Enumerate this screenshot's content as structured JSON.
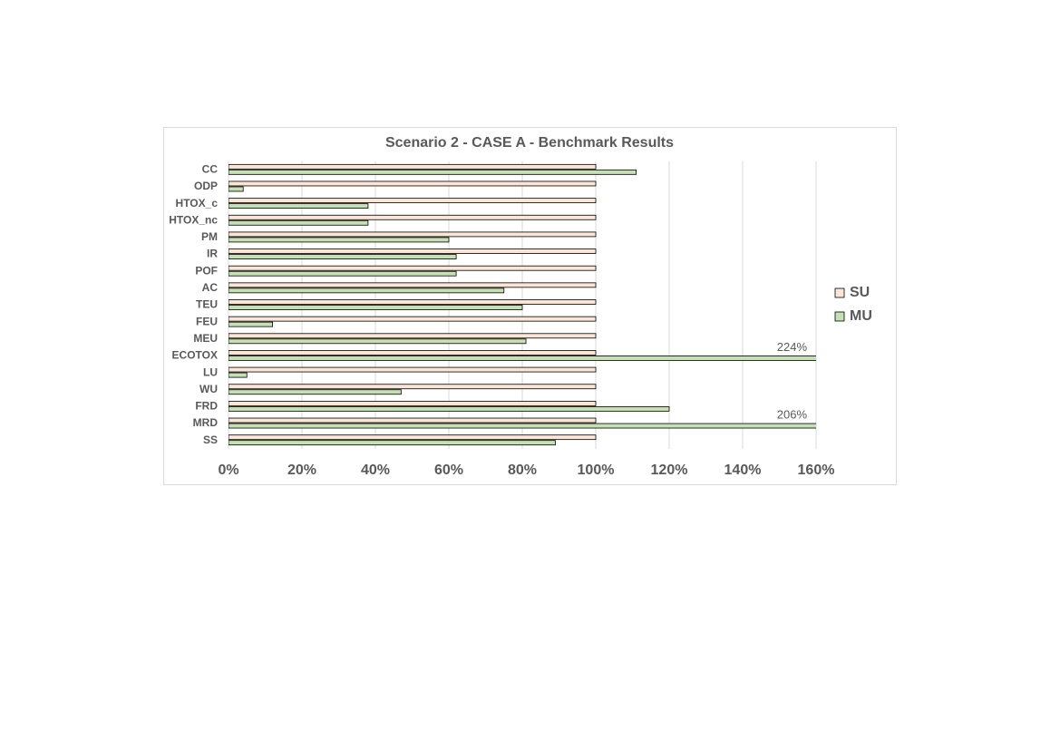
{
  "chart_data": {
    "type": "barh",
    "title": "Scenario 2 - CASE A - Benchmark Results",
    "categories": [
      "CC",
      "ODP",
      "HTOX_c",
      "HTOX_nc",
      "PM",
      "IR",
      "POF",
      "AC",
      "TEU",
      "FEU",
      "MEU",
      "ECOTOX",
      "LU",
      "WU",
      "FRD",
      "MRD",
      "SS"
    ],
    "series": [
      {
        "name": "SU",
        "color": "#fbe5d6",
        "values": [
          100,
          100,
          100,
          100,
          100,
          100,
          100,
          100,
          100,
          100,
          100,
          100,
          100,
          100,
          100,
          100,
          100
        ]
      },
      {
        "name": "MU",
        "color": "#c5e0b4",
        "values": [
          111,
          4,
          38,
          38,
          60,
          62,
          62,
          75,
          80,
          12,
          81,
          224,
          5,
          47,
          120,
          206,
          89
        ],
        "value_labels": [
          null,
          null,
          null,
          null,
          null,
          null,
          null,
          null,
          null,
          null,
          null,
          "224%",
          null,
          null,
          null,
          "206%",
          null
        ]
      }
    ],
    "xlim": [
      0,
      160
    ],
    "xticks": [
      {
        "value": 0,
        "label": "0%"
      },
      {
        "value": 20,
        "label": "20%"
      },
      {
        "value": 40,
        "label": "40%"
      },
      {
        "value": 60,
        "label": "60%"
      },
      {
        "value": 80,
        "label": "80%"
      },
      {
        "value": 100,
        "label": "100%"
      },
      {
        "value": 120,
        "label": "120%"
      },
      {
        "value": 140,
        "label": "140%"
      },
      {
        "value": 160,
        "label": "160%"
      }
    ],
    "grid": true,
    "legend": "right"
  }
}
